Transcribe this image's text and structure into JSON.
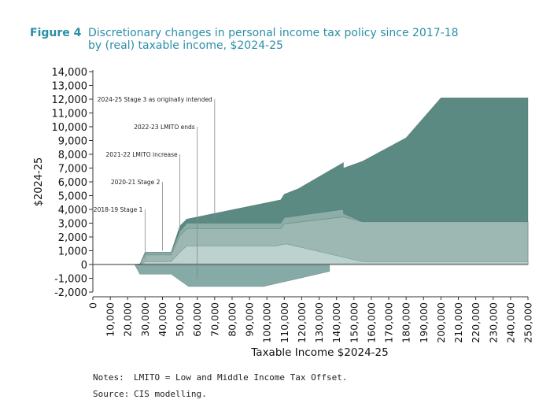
{
  "figure": {
    "label": "Figure 4",
    "title_lines": [
      "Discretionary changes in personal income tax policy since 2017-18",
      "by (real) taxable income, $2024-25"
    ]
  },
  "notes": {
    "label": "Notes:",
    "text": "LMITO = Low and Middle Income Tax Offset."
  },
  "source": {
    "label": "Source:",
    "text": "CIS modelling."
  },
  "chart_data": {
    "type": "area",
    "xlabel": "Taxable Income $2024-25",
    "ylabel": "$2024-25",
    "xlim": [
      0,
      250000
    ],
    "ylim": [
      -2000,
      14000
    ],
    "x_ticks": [
      "0",
      "10,000",
      "20,000",
      "30,000",
      "40,000",
      "50,000",
      "60,000",
      "70,000",
      "80,000",
      "90,000",
      "100,000",
      "110,000",
      "120,000",
      "130,000",
      "140,000",
      "150,000",
      "160,000",
      "170,000",
      "180,000",
      "190,000",
      "200,000",
      "210,000",
      "220,000",
      "230,000",
      "240,000",
      "250,000"
    ],
    "y_ticks": [
      "14,000",
      "13,000",
      "12,000",
      "11,000",
      "10,000",
      "9,000",
      "8,000",
      "7,000",
      "6,000",
      "5,000",
      "4,000",
      "3,000",
      "2,000",
      "1,000",
      "0",
      "-1,000",
      "-2,000"
    ],
    "series": [
      {
        "name": "2024-25 Stage 3 as originally intended",
        "color": "#5a8a82",
        "points": [
          [
            27000,
            0
          ],
          [
            30000,
            900
          ],
          [
            45000,
            900
          ],
          [
            50000,
            2800
          ],
          [
            54000,
            3300
          ],
          [
            108000,
            4700
          ],
          [
            110000,
            5100
          ],
          [
            118000,
            5500
          ],
          [
            144000,
            7400
          ],
          [
            144000,
            7000
          ],
          [
            155000,
            7500
          ],
          [
            180000,
            9200
          ],
          [
            200000,
            12100
          ],
          [
            250000,
            12100
          ]
        ]
      },
      {
        "name": "2022-23 LMITO ends",
        "color": "#8cada8",
        "points": [
          [
            27000,
            0
          ],
          [
            30000,
            900
          ],
          [
            45000,
            900
          ],
          [
            50000,
            2400
          ],
          [
            54000,
            3000
          ],
          [
            108000,
            3000
          ],
          [
            110000,
            3400
          ],
          [
            144000,
            4000
          ],
          [
            144000,
            3700
          ],
          [
            155000,
            3100
          ],
          [
            250000,
            3100
          ]
        ]
      },
      {
        "name": "2021-22 LMITO increase",
        "color": "#9db8b3",
        "points": [
          [
            27000,
            0
          ],
          [
            30000,
            700
          ],
          [
            45000,
            700
          ],
          [
            50000,
            2100
          ],
          [
            54000,
            2600
          ],
          [
            108000,
            2600
          ],
          [
            110000,
            2950
          ],
          [
            144000,
            3450
          ],
          [
            155000,
            3100
          ],
          [
            250000,
            3100
          ]
        ]
      },
      {
        "name": "2020-21 Stage 2",
        "color": "#bcd2cf",
        "points": [
          [
            27000,
            0
          ],
          [
            30000,
            200
          ],
          [
            45000,
            200
          ],
          [
            50000,
            900
          ],
          [
            54000,
            1350
          ],
          [
            105000,
            1350
          ],
          [
            111000,
            1500
          ],
          [
            155000,
            200
          ],
          [
            250000,
            200
          ]
        ]
      },
      {
        "name": "2018-19 Stage 1",
        "color": "#e6eeed",
        "points": [
          [
            24000,
            0
          ],
          [
            30000,
            100
          ],
          [
            250000,
            100
          ]
        ]
      },
      {
        "name": "",
        "color": "#86aaa5",
        "points": [
          [
            24000,
            0
          ],
          [
            27000,
            -700
          ],
          [
            45000,
            -700
          ],
          [
            55000,
            -1600
          ],
          [
            98000,
            -1600
          ],
          [
            136000,
            -500
          ],
          [
            136000,
            0
          ]
        ]
      }
    ],
    "annotations": [
      {
        "text": "2024-25 Stage 3 as originally intended",
        "x": 70000,
        "y": 12000,
        "line_to": 3300
      },
      {
        "text": "2022-23 LMITO ends",
        "x": 60000,
        "y": 10000,
        "line_to": -1000
      },
      {
        "text": "2021-22 LMITO increase",
        "x": 50000,
        "y": 8000,
        "line_to": 2400
      },
      {
        "text": "2020-21 Stage 2",
        "x": 40000,
        "y": 6000,
        "line_to": 1000
      },
      {
        "text": "2018-19 Stage 1",
        "x": 30000,
        "y": 4000,
        "line_to": 300
      }
    ],
    "grid": false
  }
}
